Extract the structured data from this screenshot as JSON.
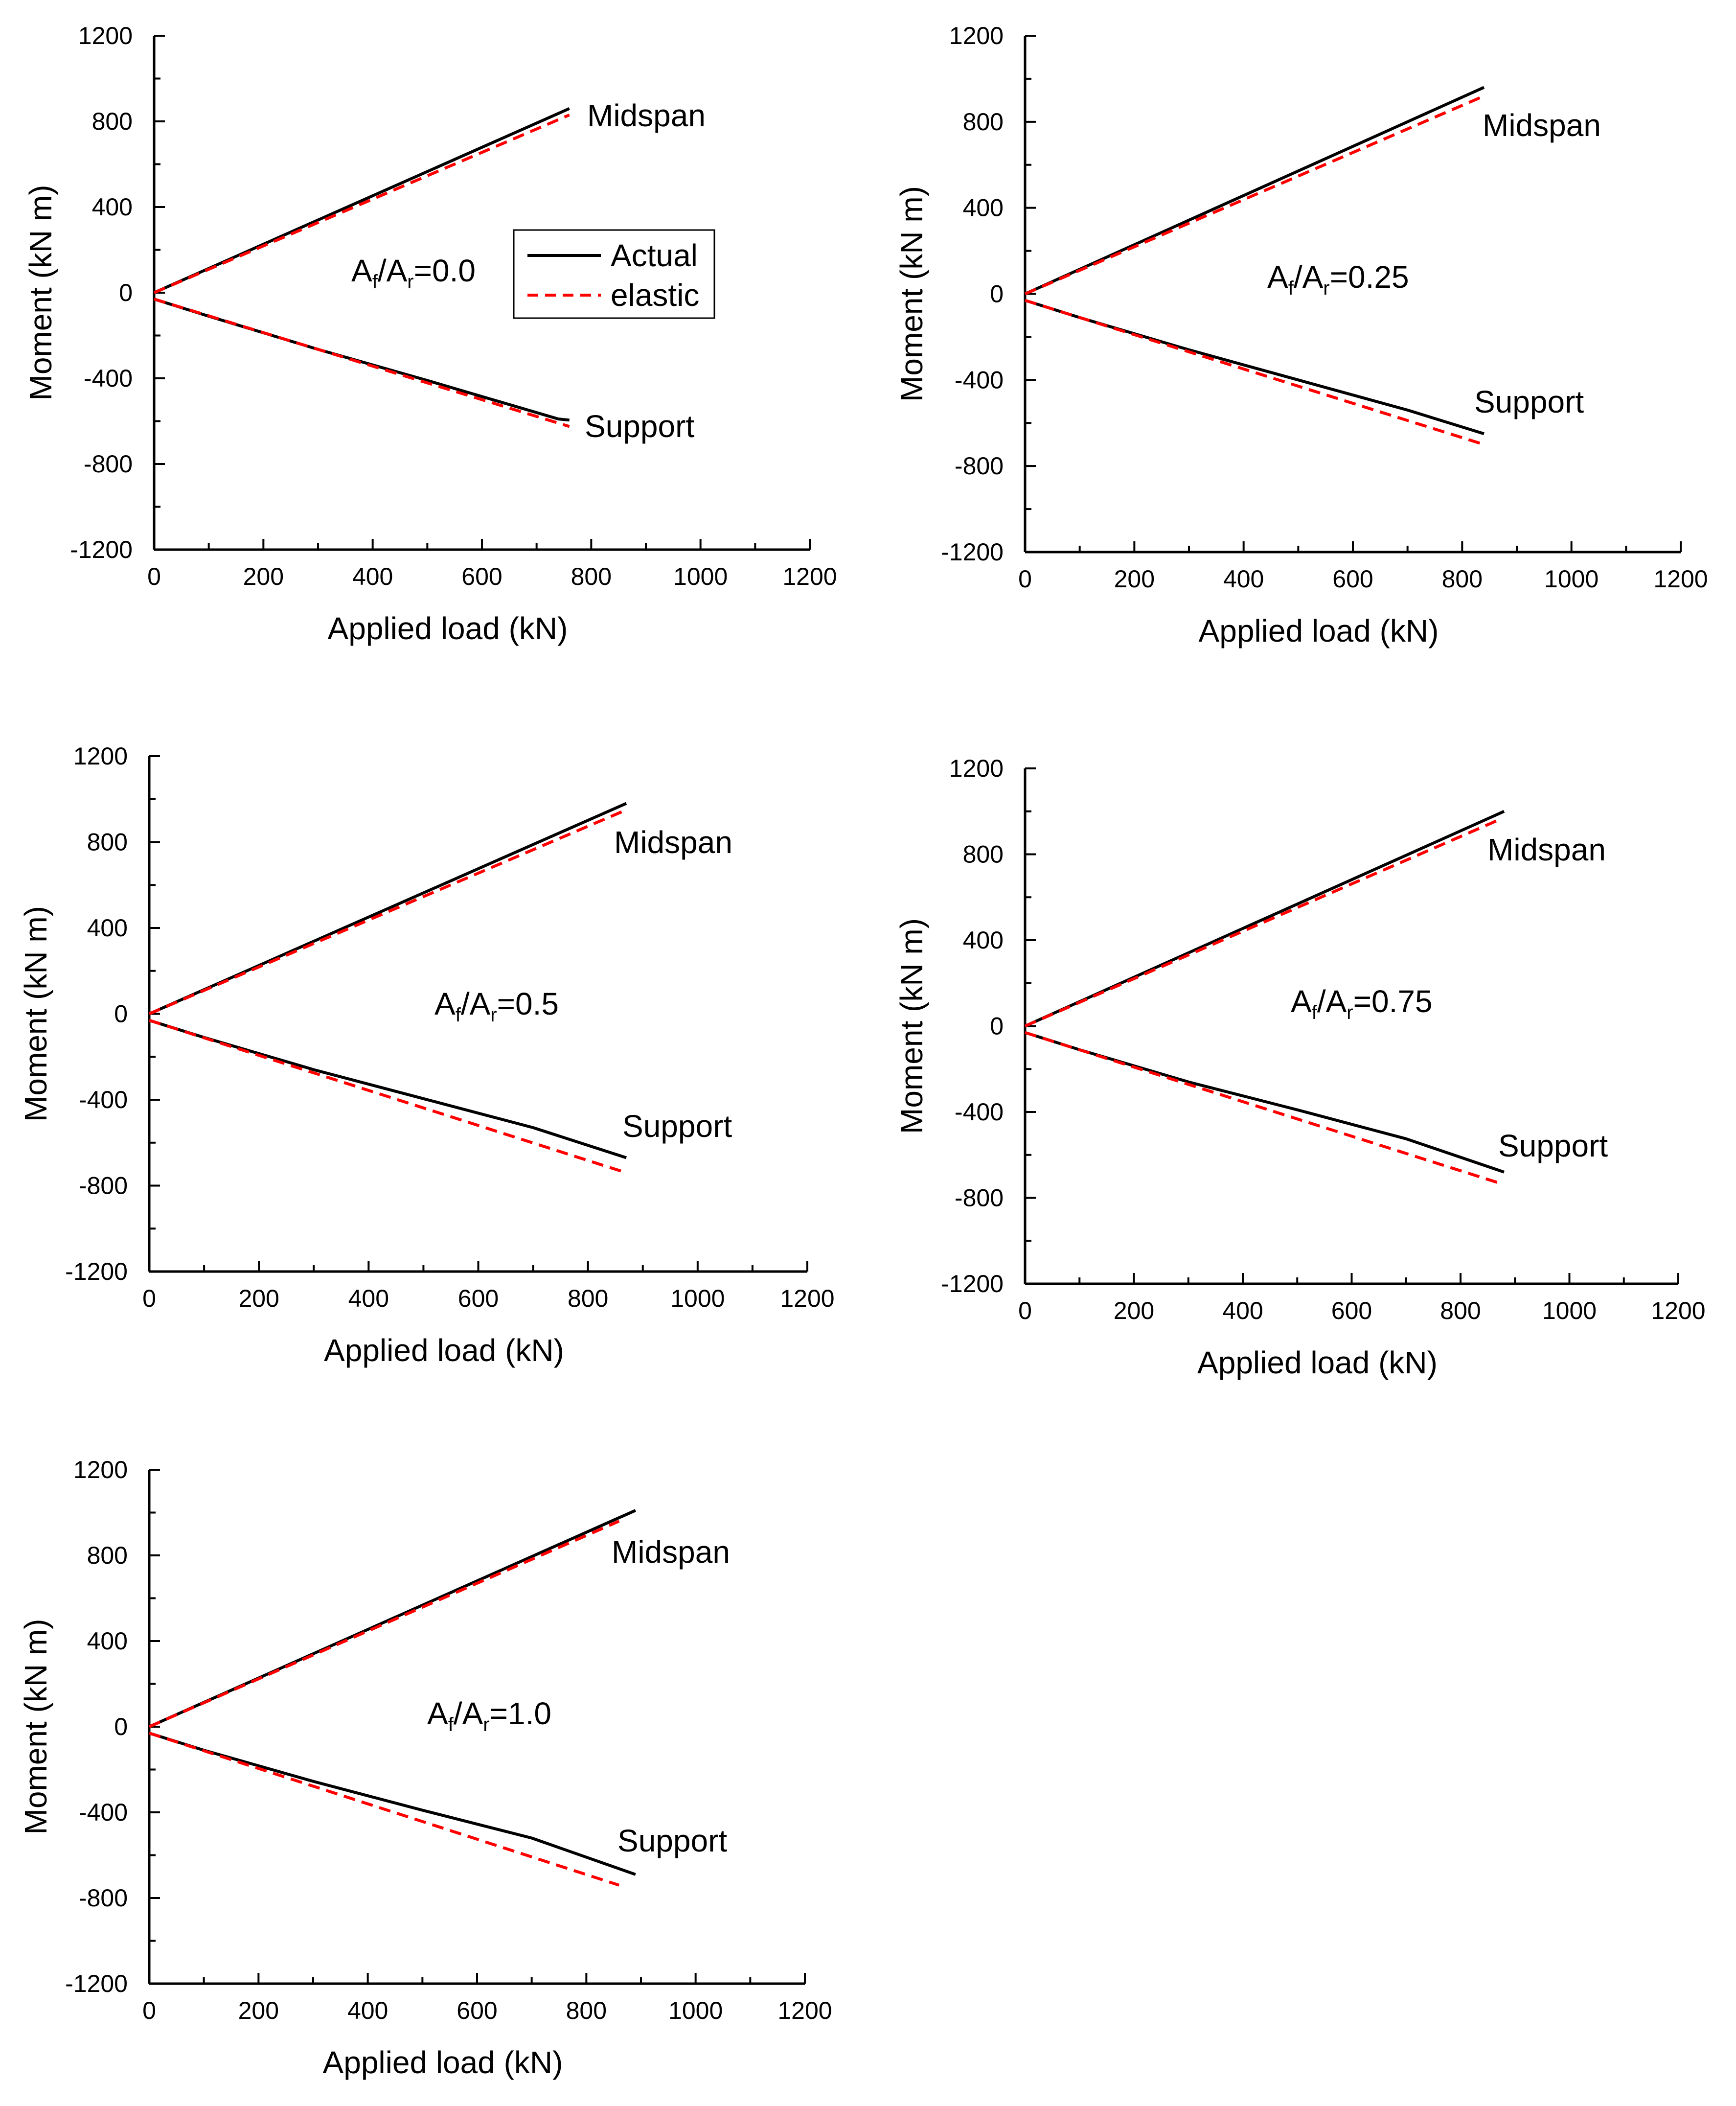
{
  "colors": {
    "actual": "#000000",
    "elastic": "#ff0000",
    "axis": "#000000"
  },
  "chart_data": [
    {
      "type": "line",
      "xlabel": "Applied load (kN)",
      "ylabel": "Moment (kN m)",
      "xlim": [
        0,
        1200
      ],
      "ylim": [
        -1200,
        1200
      ],
      "xticks": [
        "0",
        "200",
        "400",
        "600",
        "800",
        "1000",
        "1200"
      ],
      "yticks": [
        "1200",
        "800",
        "400",
        "0",
        "-400",
        "-800",
        "-1200"
      ],
      "ratio": {
        "a1": "A",
        "s1": "f",
        "slash": "/",
        "a2": "A",
        "s2": "r",
        "value": "=0.0"
      },
      "label_mid": "Midspan",
      "label_sup": "Support",
      "legend": {
        "actual": "Actual",
        "elastic": "elastic"
      },
      "series": [
        {
          "name": "Actual",
          "x": [
            0,
            760
          ],
          "y": [
            0,
            860
          ]
        },
        {
          "name": "Actual",
          "x": [
            0,
            100,
            300,
            500,
            700,
            740,
            760
          ],
          "y": [
            -30,
            -110,
            -265,
            -410,
            -560,
            -590,
            -595
          ]
        },
        {
          "name": "elastic",
          "x": [
            0,
            760
          ],
          "y": [
            0,
            830
          ]
        },
        {
          "name": "elastic",
          "x": [
            0,
            760
          ],
          "y": [
            -30,
            -625
          ]
        }
      ]
    },
    {
      "type": "line",
      "xlabel": "Applied load (kN)",
      "ylabel": "Moment (kN m)",
      "xlim": [
        0,
        1200
      ],
      "ylim": [
        -1200,
        1200
      ],
      "xticks": [
        "0",
        "200",
        "400",
        "600",
        "800",
        "1000",
        "1200"
      ],
      "yticks": [
        "1200",
        "800",
        "400",
        "0",
        "-400",
        "-800",
        "-1200"
      ],
      "ratio": {
        "a1": "A",
        "s1": "f",
        "slash": "/",
        "a2": "A",
        "s2": "r",
        "value": "=0.25"
      },
      "label_mid": "Midspan",
      "label_sup": "Support",
      "series": [
        {
          "name": "Actual",
          "x": [
            0,
            840
          ],
          "y": [
            0,
            960
          ]
        },
        {
          "name": "Actual",
          "x": [
            0,
            100,
            300,
            500,
            700,
            840
          ],
          "y": [
            -30,
            -110,
            -260,
            -400,
            -540,
            -650
          ]
        },
        {
          "name": "elastic",
          "x": [
            0,
            840
          ],
          "y": [
            0,
            920
          ]
        },
        {
          "name": "elastic",
          "x": [
            0,
            840
          ],
          "y": [
            -30,
            -700
          ]
        }
      ]
    },
    {
      "type": "line",
      "xlabel": "Applied load (kN)",
      "ylabel": "Moment (kN m)",
      "xlim": [
        0,
        1200
      ],
      "ylim": [
        -1200,
        1200
      ],
      "xticks": [
        "0",
        "200",
        "400",
        "600",
        "800",
        "1000",
        "1200"
      ],
      "yticks": [
        "1200",
        "800",
        "400",
        "0",
        "-400",
        "-800",
        "-1200"
      ],
      "ratio": {
        "a1": "A",
        "s1": "f",
        "slash": "/",
        "a2": "A",
        "s2": "r",
        "value": "=0.5"
      },
      "label_mid": "Midspan",
      "label_sup": "Support",
      "series": [
        {
          "name": "Actual",
          "x": [
            0,
            870
          ],
          "y": [
            0,
            980
          ]
        },
        {
          "name": "Actual",
          "x": [
            0,
            100,
            300,
            500,
            700,
            870
          ],
          "y": [
            -30,
            -110,
            -260,
            -395,
            -530,
            -670
          ]
        },
        {
          "name": "elastic",
          "x": [
            0,
            870
          ],
          "y": [
            0,
            950
          ]
        },
        {
          "name": "elastic",
          "x": [
            0,
            870
          ],
          "y": [
            -30,
            -740
          ]
        }
      ]
    },
    {
      "type": "line",
      "xlabel": "Applied load (kN)",
      "ylabel": "Moment (kN m)",
      "xlim": [
        0,
        1200
      ],
      "ylim": [
        -1200,
        1200
      ],
      "xticks": [
        "0",
        "200",
        "400",
        "600",
        "800",
        "1000",
        "1200"
      ],
      "yticks": [
        "1200",
        "800",
        "400",
        "0",
        "-400",
        "-800",
        "-1200"
      ],
      "ratio": {
        "a1": "A",
        "s1": "f",
        "slash": "/",
        "a2": "A",
        "s2": "r",
        "value": "=0.75"
      },
      "label_mid": "Midspan",
      "label_sup": "Support",
      "series": [
        {
          "name": "Actual",
          "x": [
            0,
            880
          ],
          "y": [
            0,
            1000
          ]
        },
        {
          "name": "Actual",
          "x": [
            0,
            100,
            300,
            500,
            700,
            880
          ],
          "y": [
            -30,
            -110,
            -260,
            -390,
            -525,
            -680
          ]
        },
        {
          "name": "elastic",
          "x": [
            0,
            870
          ],
          "y": [
            0,
            960
          ]
        },
        {
          "name": "elastic",
          "x": [
            0,
            870
          ],
          "y": [
            -30,
            -730
          ]
        }
      ]
    },
    {
      "type": "line",
      "xlabel": "Applied load (kN)",
      "ylabel": "Moment (kN m)",
      "xlim": [
        0,
        1200
      ],
      "ylim": [
        -1200,
        1200
      ],
      "xticks": [
        "0",
        "200",
        "400",
        "600",
        "800",
        "1000",
        "1200"
      ],
      "yticks": [
        "1200",
        "800",
        "400",
        "0",
        "-400",
        "-800",
        "-1200"
      ],
      "ratio": {
        "a1": "A",
        "s1": "f",
        "slash": "/",
        "a2": "A",
        "s2": "r",
        "value": "=1.0"
      },
      "label_mid": "Midspan",
      "label_sup": "Support",
      "series": [
        {
          "name": "Actual",
          "x": [
            0,
            890
          ],
          "y": [
            0,
            1010
          ]
        },
        {
          "name": "Actual",
          "x": [
            0,
            100,
            300,
            500,
            700,
            890
          ],
          "y": [
            -30,
            -110,
            -255,
            -390,
            -520,
            -690
          ]
        },
        {
          "name": "elastic",
          "x": [
            0,
            860
          ],
          "y": [
            0,
            960
          ]
        },
        {
          "name": "elastic",
          "x": [
            0,
            860
          ],
          "y": [
            -30,
            -740
          ]
        }
      ]
    }
  ]
}
